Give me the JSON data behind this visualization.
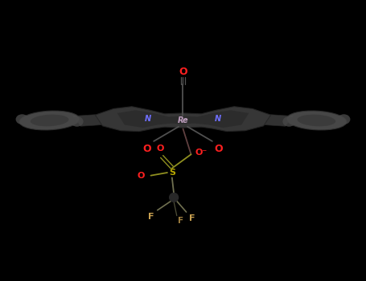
{
  "bg_color": "#000000",
  "re_color": "#c0a0c0",
  "n_color": "#7070ff",
  "o_color": "#ff2020",
  "s_color": "#b8a800",
  "f_color": "#c8a050",
  "bond_color": "#505050",
  "phen_dark": "#303030",
  "phen_mid": "#484848",
  "phen_light": "#606060",
  "phenyl_color": "#606060",
  "phenyl_edge": "#404040",
  "re_x": 5.0,
  "re_y": 4.35,
  "xlim": [
    0,
    10
  ],
  "ylim": [
    0,
    7.7
  ],
  "figw": 4.55,
  "figh": 3.5,
  "dpi": 100
}
